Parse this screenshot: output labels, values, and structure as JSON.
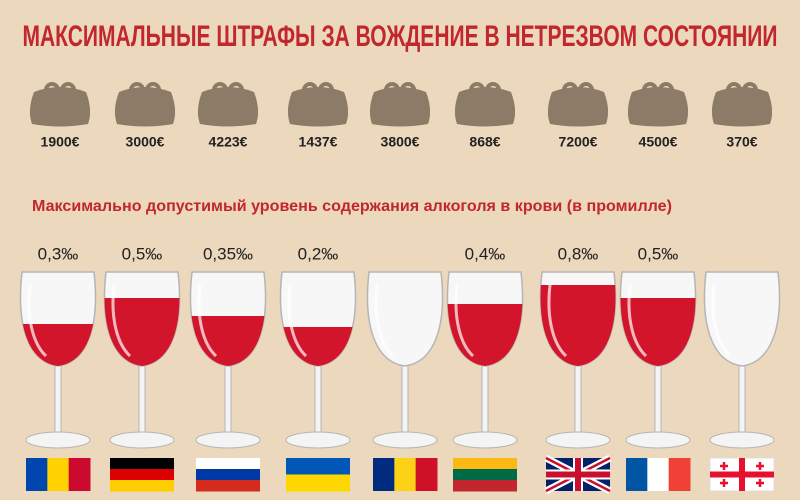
{
  "header": {
    "title": "МАКСИМАЛЬНЫЕ ШТРАФЫ ЗА ВОЖДЕНИЕ В НЕТРЕЗВОМ СОСТОЯНИИ"
  },
  "fines": [
    "1900€",
    "3000€",
    "4223€",
    "1437€",
    "3800€",
    "868€",
    "7200€",
    "4500€",
    "370€"
  ],
  "subtitle": "Максимально допустимый уровень содержания алкоголя в крови (в промилле)",
  "limits": [
    {
      "label": "0,3‰"
    },
    {
      "label": "0,5‰"
    },
    {
      "label": "0,35‰"
    },
    {
      "label": "0,2‰"
    },
    {},
    {
      "label": "0,4‰"
    },
    {
      "label": "0,8‰"
    },
    {
      "label": "0,5‰"
    },
    {}
  ]
}
